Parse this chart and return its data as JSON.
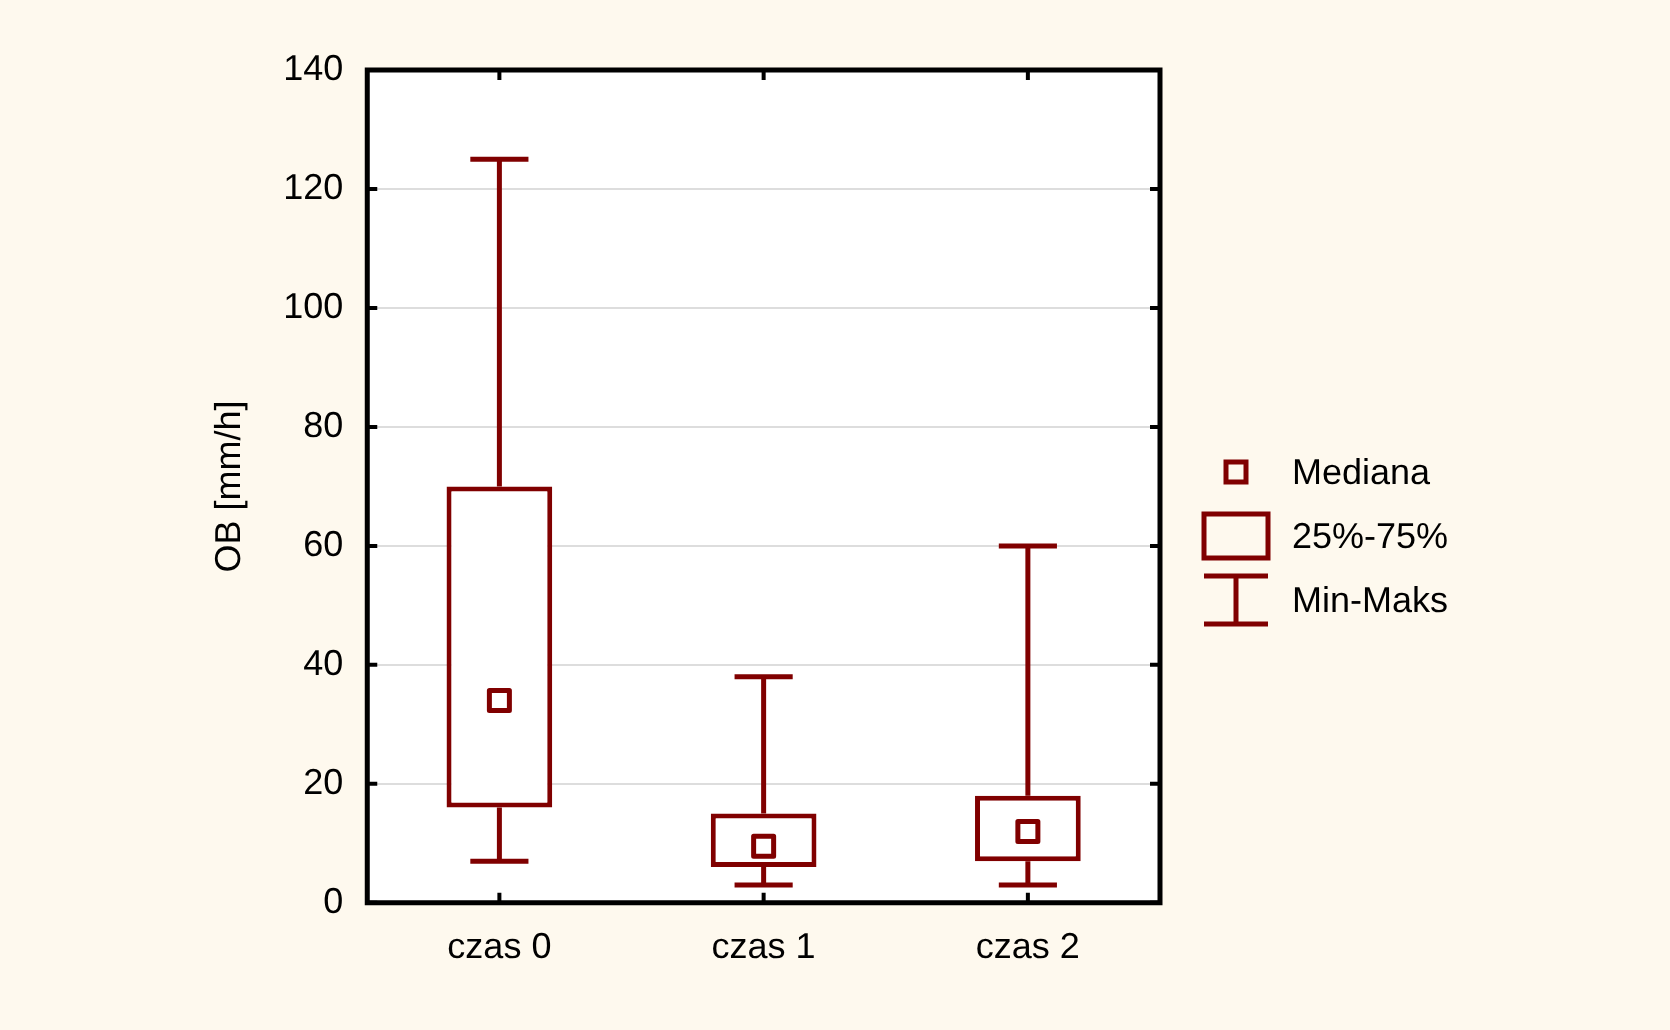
{
  "chart_data": {
    "type": "box",
    "ylabel": "OB [mm/h]",
    "categories": [
      "czas 0",
      "czas 1",
      "czas 2"
    ],
    "series": [
      {
        "color": "#800000",
        "boxes": [
          {
            "low": 7,
            "q1": 16,
            "median": 34,
            "q3": 70,
            "high": 125
          },
          {
            "low": 3,
            "q1": 6,
            "median": 9.5,
            "q3": 15,
            "high": 38
          },
          {
            "low": 3,
            "q1": 7,
            "median": 12,
            "q3": 18,
            "high": 60
          }
        ]
      }
    ],
    "ylim": [
      0,
      140
    ],
    "yticks": [
      0,
      20,
      40,
      60,
      80,
      100,
      120,
      140
    ],
    "grid": "y",
    "annotations": [
      "Mediana",
      "25%-75%",
      "Min-Maks"
    ]
  }
}
